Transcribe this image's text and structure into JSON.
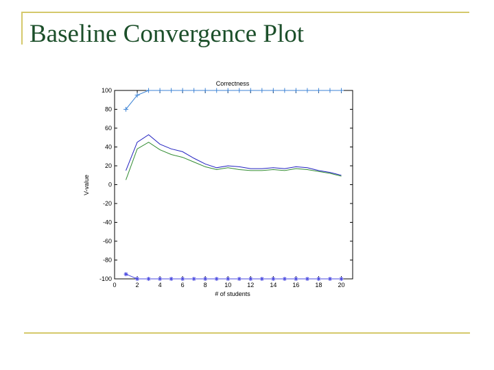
{
  "slide": {
    "title": "Baseline Convergence Plot"
  },
  "colors": {
    "title": "#1c4f2a",
    "rule": "#d4c86a",
    "axis": "#000000"
  },
  "chart_data": {
    "type": "line",
    "title": "Correctness",
    "xlabel": "# of students",
    "ylabel": "V-value",
    "xlim": [
      0,
      21
    ],
    "ylim": [
      -100,
      100
    ],
    "xticks": [
      0,
      2,
      4,
      6,
      8,
      10,
      12,
      14,
      16,
      18,
      20
    ],
    "yticks": [
      100,
      80,
      60,
      40,
      20,
      0,
      -20,
      -40,
      -60,
      -80,
      -100
    ],
    "grid": false,
    "series": [
      {
        "color": "#3b82d4",
        "marker": "plus",
        "x": [
          1,
          2,
          3,
          4,
          5,
          6,
          7,
          8,
          9,
          10,
          11,
          12,
          13,
          14,
          15,
          16,
          17,
          18,
          19,
          20
        ],
        "y": [
          80,
          95,
          100,
          100,
          100,
          100,
          100,
          100,
          100,
          100,
          100,
          100,
          100,
          100,
          100,
          100,
          100,
          100,
          100,
          100
        ]
      },
      {
        "color": "#2020c0",
        "marker": "none",
        "x": [
          1,
          2,
          3,
          4,
          5,
          6,
          7,
          8,
          9,
          10,
          11,
          12,
          13,
          14,
          15,
          16,
          17,
          18,
          19,
          20
        ],
        "y": [
          15,
          45,
          53,
          43,
          38,
          35,
          28,
          22,
          18,
          20,
          19,
          17,
          17,
          18,
          17,
          19,
          18,
          15,
          13,
          10
        ]
      },
      {
        "color": "#2f8a2f",
        "marker": "none",
        "x": [
          1,
          2,
          3,
          4,
          5,
          6,
          7,
          8,
          9,
          10,
          11,
          12,
          13,
          14,
          15,
          16,
          17,
          18,
          19,
          20
        ],
        "y": [
          5,
          38,
          45,
          37,
          32,
          29,
          24,
          19,
          16,
          18,
          16,
          15,
          15,
          16,
          15,
          17,
          16,
          14,
          12,
          9
        ]
      },
      {
        "color": "#4a4ae0",
        "marker": "star",
        "x": [
          1,
          2,
          3,
          4,
          5,
          6,
          7,
          8,
          9,
          10,
          11,
          12,
          13,
          14,
          15,
          16,
          17,
          18,
          19,
          20
        ],
        "y": [
          -95,
          -100,
          -100,
          -100,
          -100,
          -100,
          -100,
          -100,
          -100,
          -100,
          -100,
          -100,
          -100,
          -100,
          -100,
          -100,
          -100,
          -100,
          -100,
          -100
        ]
      }
    ]
  }
}
